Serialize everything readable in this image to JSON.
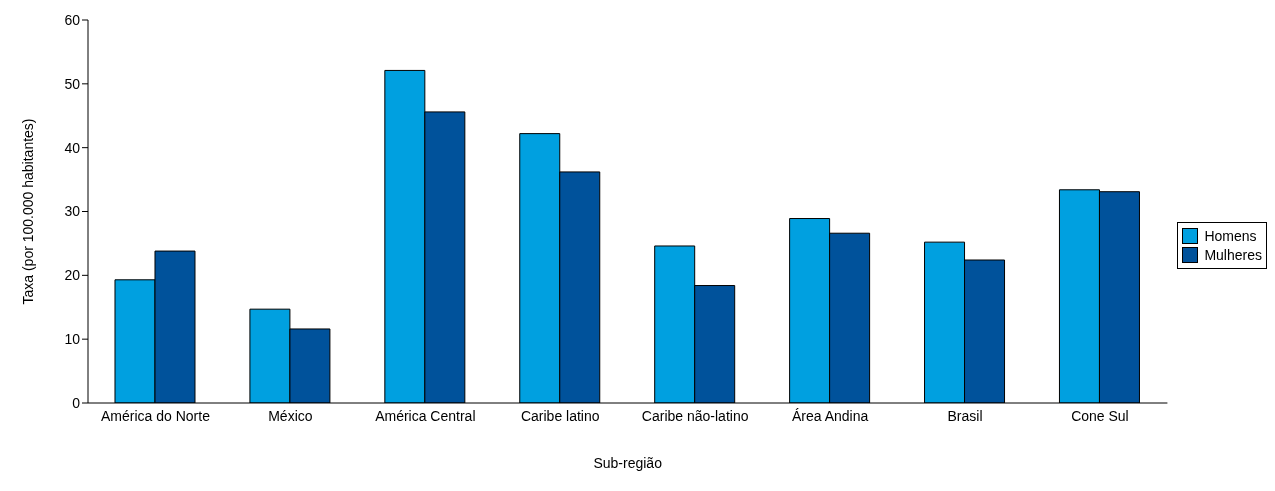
{
  "chart_data": {
    "type": "bar",
    "xlabel": "Sub-região",
    "ylabel": "Taxa (por 100.000 habitantes)",
    "categories": [
      "América do Norte",
      "México",
      "América Central",
      "Caribe latino",
      "Caribe não-latino",
      "Área Andina",
      "Brasil",
      "Cone Sul"
    ],
    "series": [
      {
        "name": "Homens",
        "color": "#00a0e0",
        "values": [
          19.3,
          14.7,
          52.1,
          42.2,
          24.6,
          28.9,
          25.2,
          33.4
        ]
      },
      {
        "name": "Mulheres",
        "color": "#00529b",
        "values": [
          23.8,
          11.6,
          45.6,
          36.2,
          18.4,
          26.6,
          22.4,
          33.1
        ]
      }
    ],
    "ylim": [
      0,
      60
    ],
    "yticks": [
      0,
      10,
      20,
      30,
      40,
      50,
      60
    ],
    "grid": false,
    "legend": "right"
  }
}
